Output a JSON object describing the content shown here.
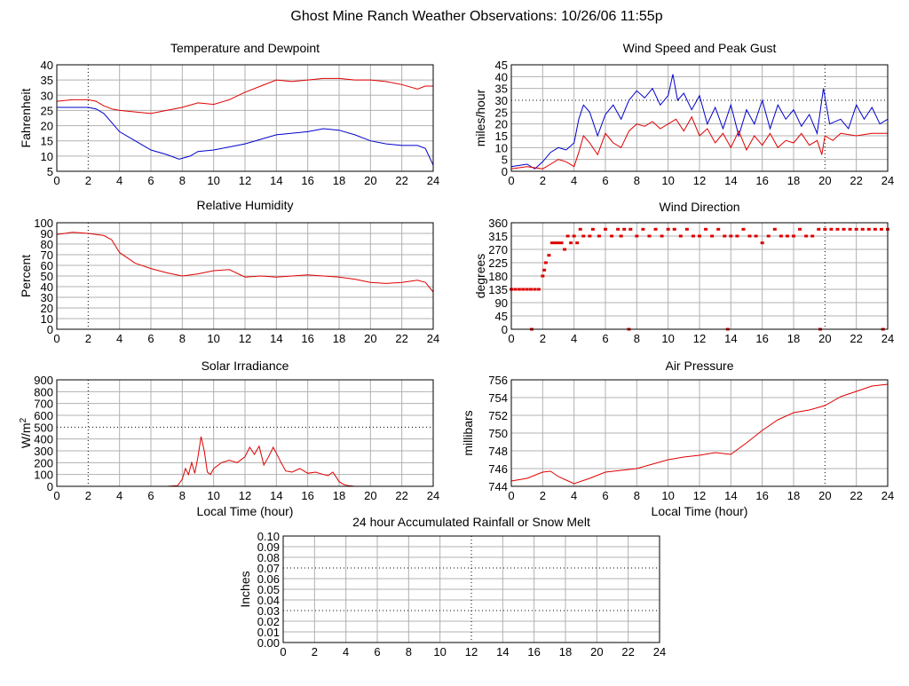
{
  "page_title": "Ghost Mine Ranch Weather Observations: 10/26/06 11:55p",
  "colors": {
    "red": "#e00000",
    "blue": "#0000cc",
    "grid": "#b0b0b0",
    "dotted": "#000000"
  },
  "x_ticks": [
    "0",
    "2",
    "4",
    "6",
    "8",
    "10",
    "12",
    "14",
    "16",
    "18",
    "20",
    "22",
    "24"
  ],
  "chart_data": [
    {
      "id": "temperature",
      "type": "line",
      "title": "Temperature and Dewpoint",
      "ylabel": "Fahrenheit",
      "xlabel": "",
      "xlim": [
        0,
        24
      ],
      "ylim": [
        5,
        40
      ],
      "y_ticks": [
        "5",
        "10",
        "15",
        "20",
        "25",
        "30",
        "35",
        "40"
      ],
      "dotted_x": [
        2
      ],
      "dotted_y": [],
      "series": [
        {
          "name": "Temperature",
          "color": "red",
          "x": [
            0,
            1,
            2,
            2.5,
            3,
            3.5,
            4,
            5,
            6,
            7,
            8,
            9,
            10,
            11,
            12,
            13,
            14,
            15,
            16,
            17,
            18,
            19,
            20,
            21,
            22,
            23,
            23.5,
            24
          ],
          "y": [
            28,
            28.5,
            28.5,
            28,
            26.5,
            25.5,
            25,
            24.5,
            24,
            25,
            26,
            27.5,
            27,
            28.5,
            31,
            33,
            35,
            34.5,
            35,
            35.5,
            35.5,
            35,
            35,
            34.5,
            33.5,
            32,
            33,
            33
          ]
        },
        {
          "name": "Dewpoint",
          "color": "blue",
          "x": [
            0,
            1,
            2,
            2.5,
            3,
            3.5,
            4,
            5,
            6,
            7,
            7.8,
            8.5,
            9,
            10,
            11,
            12,
            13,
            14,
            15,
            16,
            17,
            18,
            19,
            20,
            21,
            22,
            23,
            23.5,
            24
          ],
          "y": [
            26,
            26,
            26,
            25.5,
            24,
            21,
            18,
            15,
            12,
            10.5,
            9,
            10,
            11.5,
            12,
            13,
            14,
            15.5,
            17,
            17.5,
            18,
            19,
            18.5,
            17,
            15,
            14,
            13.5,
            13.5,
            12.5,
            7
          ]
        }
      ]
    },
    {
      "id": "wind_speed",
      "type": "line",
      "title": "Wind Speed and Peak Gust",
      "ylabel": "miles/hour",
      "xlabel": "",
      "xlim": [
        0,
        24
      ],
      "ylim": [
        0,
        45
      ],
      "y_ticks": [
        "0",
        "5",
        "10",
        "15",
        "20",
        "25",
        "30",
        "35",
        "40",
        "45"
      ],
      "dotted_x": [
        20
      ],
      "dotted_y": [
        30
      ],
      "series": [
        {
          "name": "Peak Gust",
          "color": "blue",
          "x": [
            0,
            1,
            1.5,
            2,
            2.5,
            3,
            3.5,
            4,
            4.3,
            4.6,
            5,
            5.5,
            6,
            6.5,
            7,
            7.5,
            8,
            8.5,
            9,
            9.5,
            10,
            10.3,
            10.6,
            11,
            11.5,
            12,
            12.5,
            13,
            13.5,
            14,
            14.5,
            15,
            15.5,
            16,
            16.5,
            17,
            17.5,
            18,
            18.5,
            19,
            19.5,
            19.9,
            20.3,
            21,
            21.5,
            22,
            22.5,
            23,
            23.5,
            24
          ],
          "y": [
            2,
            3,
            1,
            4,
            8,
            10,
            9,
            12,
            22,
            28,
            25,
            15,
            24,
            28,
            22,
            30,
            34,
            31,
            35,
            28,
            32,
            41,
            30,
            33,
            26,
            32,
            20,
            27,
            18,
            28,
            15,
            26,
            20,
            30,
            18,
            28,
            22,
            26,
            19,
            24,
            16,
            35,
            20,
            22,
            18,
            28,
            22,
            27,
            20,
            22
          ]
        },
        {
          "name": "Wind Speed",
          "color": "red",
          "x": [
            0,
            1,
            2,
            2.5,
            3,
            3.5,
            4,
            4.3,
            4.6,
            5,
            5.5,
            6,
            6.5,
            7,
            7.5,
            8,
            8.5,
            9,
            9.5,
            10,
            10.5,
            11,
            11.5,
            12,
            12.5,
            13,
            13.5,
            14,
            14.5,
            15,
            15.5,
            16,
            16.5,
            17,
            17.5,
            18,
            18.5,
            19,
            19.5,
            19.8,
            20,
            20.5,
            21,
            22,
            23,
            24
          ],
          "y": [
            1,
            2,
            1,
            3,
            5,
            4,
            2,
            8,
            15,
            12,
            7,
            16,
            12,
            10,
            17,
            20,
            19,
            21,
            18,
            20,
            22,
            17,
            23,
            15,
            18,
            12,
            16,
            10,
            17,
            9,
            15,
            11,
            16,
            10,
            13,
            12,
            16,
            11,
            13,
            7,
            15,
            13,
            16,
            15,
            16,
            16
          ]
        }
      ]
    },
    {
      "id": "humidity",
      "type": "line",
      "title": "Relative Humidity",
      "ylabel": "Percent",
      "xlabel": "",
      "xlim": [
        0,
        24
      ],
      "ylim": [
        0,
        100
      ],
      "y_ticks": [
        "0",
        "10",
        "20",
        "30",
        "40",
        "50",
        "60",
        "70",
        "80",
        "90",
        "100"
      ],
      "dotted_x": [
        2
      ],
      "dotted_y": [],
      "series": [
        {
          "name": "Relative Humidity",
          "color": "red",
          "x": [
            0,
            1,
            2,
            3,
            3.5,
            4,
            5,
            6,
            7,
            8,
            9,
            10,
            11,
            12,
            13,
            14,
            15,
            16,
            17,
            18,
            19,
            20,
            21,
            22,
            23,
            23.5,
            24
          ],
          "y": [
            89,
            91,
            90,
            88,
            84,
            72,
            62,
            57,
            53,
            50,
            52,
            55,
            56,
            49,
            50,
            49,
            50,
            51,
            50,
            49,
            47,
            44,
            43,
            44,
            46,
            44,
            35
          ]
        }
      ]
    },
    {
      "id": "wind_direction",
      "type": "scatter",
      "title": "Wind Direction",
      "ylabel": "degrees",
      "xlabel": "",
      "xlim": [
        0,
        24
      ],
      "ylim": [
        0,
        360
      ],
      "y_ticks": [
        "0",
        "45",
        "90",
        "135",
        "180",
        "225",
        "270",
        "315",
        "360"
      ],
      "dotted_x": [
        20
      ],
      "dotted_y": [],
      "series": [
        {
          "name": "Wind Direction",
          "color": "red",
          "x": [
            0,
            0.25,
            0.5,
            0.75,
            1,
            1.25,
            1.5,
            1.75,
            2,
            2.1,
            2.2,
            2.4,
            2.6,
            2.8,
            3,
            3.2,
            3.4,
            3.6,
            3.8,
            4,
            4.2,
            4.4,
            4.6,
            5,
            5.2,
            5.6,
            6,
            6.4,
            6.8,
            7,
            7.2,
            7.6,
            8,
            8.4,
            8.8,
            9.2,
            9.6,
            10,
            10.4,
            10.8,
            11.2,
            11.6,
            12,
            12.4,
            12.8,
            13.2,
            13.6,
            14,
            14.4,
            14.8,
            15.2,
            15.6,
            16,
            16.4,
            16.8,
            17.2,
            17.6,
            18,
            18.4,
            18.8,
            19.2,
            19.6,
            20,
            20.4,
            20.8,
            21.2,
            21.6,
            22,
            22.4,
            22.8,
            23.2,
            23.6,
            24,
            1.3,
            7.5,
            13.8,
            19.7,
            23.7
          ],
          "y": [
            135,
            135,
            135,
            135,
            135,
            135,
            135,
            135,
            180,
            200,
            225,
            250,
            292,
            292,
            292,
            292,
            270,
            315,
            292,
            315,
            292,
            338,
            315,
            315,
            338,
            315,
            338,
            315,
            338,
            315,
            338,
            338,
            315,
            338,
            315,
            338,
            315,
            338,
            338,
            315,
            338,
            315,
            315,
            338,
            315,
            338,
            315,
            315,
            315,
            338,
            315,
            315,
            292,
            315,
            338,
            315,
            315,
            315,
            338,
            315,
            315,
            338,
            338,
            338,
            338,
            338,
            338,
            338,
            338,
            338,
            338,
            338,
            338,
            0,
            0,
            0,
            0,
            0
          ]
        }
      ]
    },
    {
      "id": "solar",
      "type": "line",
      "title": "Solar Irradiance",
      "ylabel": "W/m",
      "ylabel_sup": "2",
      "xlabel": "Local Time (hour)",
      "xlim": [
        0,
        24
      ],
      "ylim": [
        0,
        900
      ],
      "y_ticks": [
        "0",
        "100",
        "200",
        "300",
        "400",
        "500",
        "600",
        "700",
        "800",
        "900"
      ],
      "dotted_x": [
        2
      ],
      "dotted_y": [
        500
      ],
      "series": [
        {
          "name": "Solar Irradiance",
          "color": "red",
          "x": [
            0,
            7,
            7.7,
            8,
            8.2,
            8.4,
            8.6,
            8.8,
            9,
            9.2,
            9.4,
            9.6,
            9.8,
            10,
            10.5,
            11,
            11.5,
            12,
            12.3,
            12.6,
            12.9,
            13.2,
            13.5,
            13.8,
            14,
            14.3,
            14.6,
            15,
            15.5,
            16,
            16.5,
            17,
            17.3,
            17.6,
            17.8,
            18,
            18.3,
            18.6,
            19,
            20,
            21,
            22,
            23,
            24
          ],
          "y": [
            0,
            0,
            5,
            60,
            150,
            100,
            200,
            110,
            250,
            420,
            300,
            120,
            100,
            150,
            200,
            220,
            200,
            250,
            330,
            270,
            340,
            180,
            250,
            330,
            280,
            200,
            130,
            120,
            150,
            110,
            120,
            100,
            90,
            120,
            80,
            40,
            15,
            5,
            0,
            0,
            0,
            0,
            0,
            0
          ]
        }
      ]
    },
    {
      "id": "pressure",
      "type": "line",
      "title": "Air Pressure",
      "ylabel": "millibars",
      "xlabel": "Local Time (hour)",
      "xlim": [
        0,
        24
      ],
      "ylim": [
        744,
        756
      ],
      "y_ticks": [
        "744",
        "746",
        "748",
        "750",
        "752",
        "754",
        "756"
      ],
      "dotted_x": [
        20
      ],
      "dotted_y": [],
      "series": [
        {
          "name": "Air Pressure",
          "color": "red",
          "x": [
            0,
            1,
            2,
            2.5,
            3,
            3.5,
            4,
            5,
            6,
            7,
            8,
            9,
            10,
            11,
            12,
            13,
            14,
            15,
            16,
            17,
            18,
            19,
            20,
            21,
            22,
            23,
            24
          ],
          "y": [
            744.6,
            744.9,
            745.6,
            745.7,
            745.1,
            744.7,
            744.3,
            744.9,
            745.6,
            745.8,
            746.0,
            746.5,
            747.0,
            747.3,
            747.5,
            747.8,
            747.6,
            748.9,
            750.3,
            751.5,
            752.3,
            752.6,
            753.1,
            754.1,
            754.7,
            755.3,
            755.5
          ]
        }
      ]
    },
    {
      "id": "rainfall",
      "type": "line",
      "title": "24 hour Accumulated Rainfall or Snow Melt",
      "ylabel": "Inches",
      "xlabel": "",
      "xlim": [
        0,
        24
      ],
      "ylim": [
        0,
        0.1
      ],
      "y_ticks": [
        "0.00",
        "0.01",
        "0.02",
        "0.03",
        "0.04",
        "0.05",
        "0.06",
        "0.07",
        "0.08",
        "0.09",
        "0.10"
      ],
      "dotted_x": [
        12
      ],
      "dotted_y": [
        0.03,
        0.07
      ],
      "series": [
        {
          "name": "Rainfall",
          "color": "red",
          "x": [
            0,
            24
          ],
          "y": [
            0,
            0
          ]
        }
      ]
    }
  ]
}
